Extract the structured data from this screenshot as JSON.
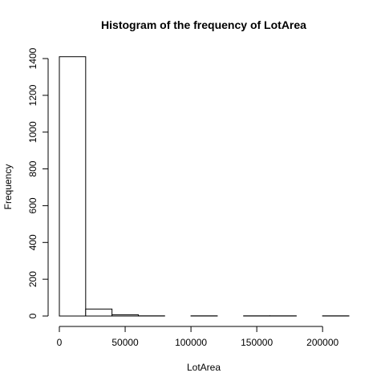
{
  "chart_data": {
    "type": "bar",
    "title": "Histogram of the frequency of LotArea",
    "xlabel": "LotArea",
    "ylabel": "Frequency",
    "bins": [
      {
        "x0": 0,
        "x1": 20000,
        "count": 1410
      },
      {
        "x0": 20000,
        "x1": 40000,
        "count": 38
      },
      {
        "x0": 40000,
        "x1": 60000,
        "count": 7
      },
      {
        "x0": 60000,
        "x1": 80000,
        "count": 1
      },
      {
        "x0": 80000,
        "x1": 100000,
        "count": 0
      },
      {
        "x0": 100000,
        "x1": 120000,
        "count": 1
      },
      {
        "x0": 120000,
        "x1": 140000,
        "count": 0
      },
      {
        "x0": 140000,
        "x1": 160000,
        "count": 1
      },
      {
        "x0": 160000,
        "x1": 180000,
        "count": 1
      },
      {
        "x0": 180000,
        "x1": 200000,
        "count": 0
      },
      {
        "x0": 200000,
        "x1": 220000,
        "count": 1
      }
    ],
    "xlim": [
      0,
      220000
    ],
    "ylim": [
      0,
      1400
    ],
    "x_ticks": [
      0,
      50000,
      100000,
      150000,
      200000
    ],
    "x_tick_labels": [
      "0",
      "50000",
      "100000",
      "150000",
      "200000"
    ],
    "y_ticks": [
      0,
      200,
      400,
      600,
      800,
      1000,
      1200,
      1400
    ],
    "y_tick_labels": [
      "0",
      "200",
      "400",
      "600",
      "800",
      "1000",
      "1200",
      "1400"
    ],
    "grid": false,
    "colors": {
      "bar_fill": "#ffffff",
      "bar_stroke": "#000000",
      "axis": "#000000"
    }
  }
}
